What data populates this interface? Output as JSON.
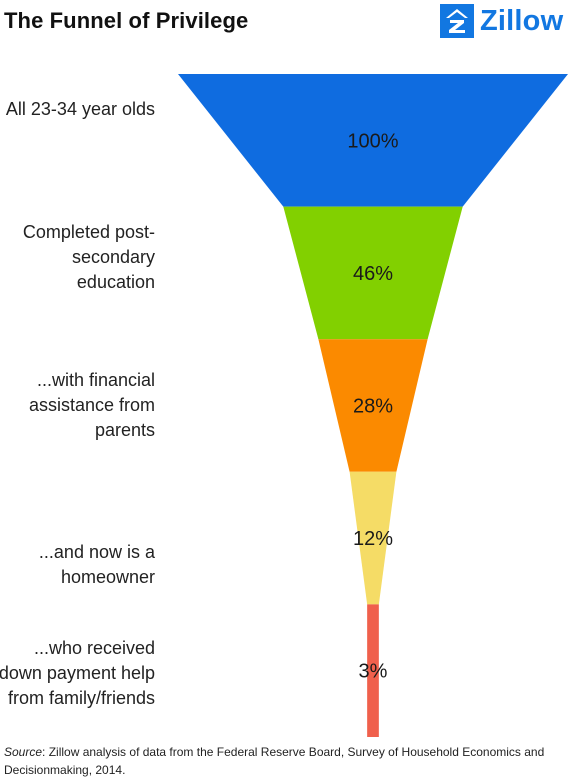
{
  "title": "The Funnel of Privilege",
  "logo": {
    "text": "Zillow",
    "icon": "zillow-z-icon",
    "color": "#1277e1"
  },
  "chart_data": {
    "type": "funnel",
    "stages": [
      {
        "label": "All 23-34 year olds",
        "value": 100,
        "value_label": "100%",
        "color": "#0f6ce0"
      },
      {
        "label": "Completed post-secondary education",
        "value": 46,
        "value_label": "46%",
        "color": "#82d000"
      },
      {
        "label": "...with financial assistance from parents",
        "value": 28,
        "value_label": "28%",
        "color": "#fb8a00"
      },
      {
        "label": "...and now is a homeowner",
        "value": 12,
        "value_label": "12%",
        "color": "#f5dc66"
      },
      {
        "label": "...who received down payment help from family/friends",
        "value": 3,
        "value_label": "3%",
        "color": "#f0604c"
      }
    ]
  },
  "source": {
    "prefix": "Source",
    "text": ": Zillow analysis of data from the Federal Reserve Board, Survey of Household Economics and Decisionmaking, 2014."
  }
}
